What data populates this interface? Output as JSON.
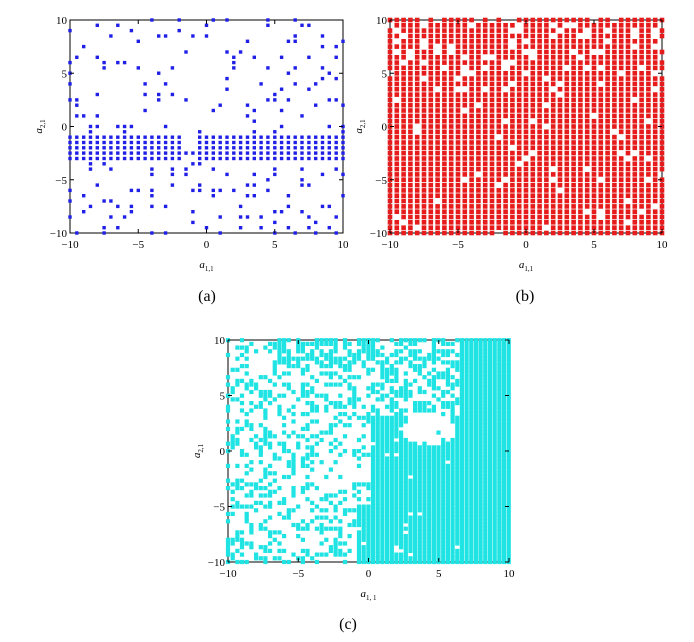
{
  "chart_data": [
    {
      "type": "scatter",
      "caption": "(a)",
      "color": "#1f1fe6",
      "xlabel": "a",
      "xlabel_sub": "1,1",
      "ylabel": "a",
      "ylabel_sub": "2,1",
      "xlim": [
        -10,
        10
      ],
      "ylim": [
        -10,
        10
      ],
      "xticks": [
        -10,
        -5,
        0,
        5,
        10
      ],
      "yticks": [
        10,
        5,
        0,
        -5,
        -10
      ],
      "ytick_labels": [
        "10",
        "5",
        "0",
        "−5",
        "−10"
      ],
      "xtick_labels": [
        "−10",
        "−5",
        "0",
        "5",
        "10"
      ],
      "grid_step": 0.5,
      "description": "sparse points; dense horizontal band for a2,1 from -3 to -1 except a1,1 between -2 and 0",
      "band": {
        "y_from": -3,
        "y_to": -1,
        "x_gap_from": -2,
        "x_gap_to": -0.5
      },
      "density": 0.14
    },
    {
      "type": "scatter",
      "caption": "(b)",
      "color": "#e61b1b",
      "xlabel": "a",
      "xlabel_sub": "1,1",
      "ylabel": "a",
      "ylabel_sub": "2,1",
      "xlim": [
        -10,
        10
      ],
      "ylim": [
        -10,
        10
      ],
      "xticks": [
        -10,
        -5,
        0,
        5,
        10
      ],
      "yticks": [
        10,
        5,
        0,
        -5,
        -10
      ],
      "ytick_labels": [
        "10",
        "5",
        "0",
        "−5",
        "−10"
      ],
      "xtick_labels": [
        "−10",
        "−5",
        "0",
        "5",
        "10"
      ],
      "grid_step": 0.5,
      "description": "nearly full grid of points with small gaps, more gaps at top",
      "density": 0.93
    },
    {
      "type": "scatter",
      "caption": "(c)",
      "color": "#20e3e3",
      "xlabel": "a",
      "xlabel_sub": "1, 1",
      "ylabel": "a",
      "ylabel_sub": "2,1",
      "xlim": [
        -10,
        10
      ],
      "ylim": [
        -10,
        10
      ],
      "xticks": [
        -10,
        -5,
        0,
        5,
        10
      ],
      "yticks": [
        10,
        5,
        0,
        -5,
        -10
      ],
      "ytick_labels": [
        "10",
        "5",
        "0",
        "−5",
        "−10"
      ],
      "xtick_labels": [
        "−10",
        "−5",
        "0",
        "5",
        "10"
      ],
      "grid_step": 0.333,
      "description": "dense region for a1,1 > 0, full region near top-right, scattered region on the left with white blobs",
      "density": 0.5
    }
  ]
}
